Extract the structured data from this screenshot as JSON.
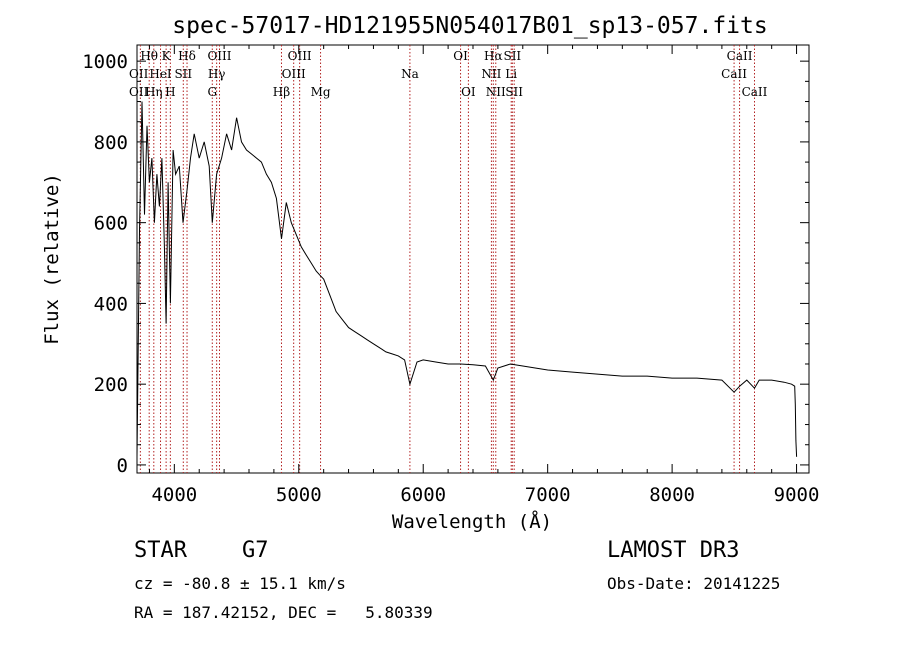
{
  "chart_data": {
    "type": "line",
    "title": "spec-57017-HD121955N054017B01_sp13-057.fits",
    "xlabel": "Wavelength (Å)",
    "ylabel": "Flux (relative)",
    "xlim": [
      3700,
      9100
    ],
    "ylim": [
      -20,
      1040
    ],
    "xticks": [
      4000,
      5000,
      6000,
      7000,
      8000,
      9000
    ],
    "yticks": [
      0,
      200,
      400,
      600,
      800,
      1000
    ],
    "grid": false,
    "line_color": "#000000",
    "marker_color": "#b22222",
    "series": [
      {
        "name": "flux",
        "x": [
          3700,
          3720,
          3740,
          3760,
          3780,
          3800,
          3820,
          3840,
          3860,
          3880,
          3900,
          3920,
          3934,
          3950,
          3968,
          3990,
          4010,
          4040,
          4070,
          4102,
          4130,
          4160,
          4200,
          4240,
          4280,
          4305,
          4340,
          4380,
          4420,
          4460,
          4500,
          4540,
          4580,
          4620,
          4660,
          4700,
          4740,
          4780,
          4820,
          4861,
          4900,
          4940,
          4980,
          5020,
          5060,
          5100,
          5140,
          5170,
          5200,
          5250,
          5300,
          5350,
          5400,
          5450,
          5500,
          5550,
          5600,
          5650,
          5700,
          5750,
          5800,
          5850,
          5893,
          5950,
          6000,
          6100,
          6200,
          6300,
          6400,
          6500,
          6563,
          6600,
          6700,
          6800,
          6900,
          7000,
          7200,
          7400,
          7600,
          7800,
          8000,
          8200,
          8400,
          8498,
          8542,
          8600,
          8662,
          8700,
          8800,
          8900,
          8960,
          8985,
          8990,
          8995,
          9000
        ],
        "y": [
          20,
          580,
          900,
          620,
          840,
          700,
          760,
          600,
          720,
          640,
          760,
          540,
          350,
          700,
          400,
          780,
          720,
          740,
          600,
          680,
          760,
          820,
          760,
          800,
          740,
          600,
          720,
          760,
          820,
          780,
          860,
          800,
          780,
          770,
          760,
          750,
          720,
          700,
          660,
          560,
          650,
          600,
          570,
          540,
          520,
          500,
          480,
          470,
          460,
          420,
          380,
          360,
          340,
          330,
          320,
          310,
          300,
          290,
          280,
          275,
          270,
          260,
          200,
          255,
          260,
          255,
          250,
          250,
          248,
          245,
          210,
          240,
          250,
          245,
          240,
          235,
          230,
          225,
          220,
          220,
          215,
          215,
          210,
          180,
          195,
          210,
          190,
          210,
          210,
          205,
          200,
          195,
          150,
          60,
          20
        ]
      }
    ],
    "lines": [
      {
        "name": "OII",
        "wave": 3727,
        "row": 1,
        "side": "left"
      },
      {
        "name": "OII",
        "wave": 3727,
        "row": 2,
        "side": "left"
      },
      {
        "name": "Hθ",
        "wave": 3798,
        "row": 0,
        "side": "center"
      },
      {
        "name": "Hη",
        "wave": 3835,
        "row": 2,
        "side": "center"
      },
      {
        "name": "HeI",
        "wave": 3889,
        "row": 1,
        "side": "center"
      },
      {
        "name": "K",
        "wave": 3934,
        "row": 0,
        "side": "center"
      },
      {
        "name": "H",
        "wave": 3968,
        "row": 2,
        "side": "center"
      },
      {
        "name": "SII",
        "wave": 4072,
        "row": 1,
        "side": "center"
      },
      {
        "name": "Hδ",
        "wave": 4102,
        "row": 0,
        "side": "center"
      },
      {
        "name": "G",
        "wave": 4305,
        "row": 2,
        "side": "center"
      },
      {
        "name": "Hγ",
        "wave": 4340,
        "row": 1,
        "side": "center"
      },
      {
        "name": "OIII",
        "wave": 4363,
        "row": 0,
        "side": "center"
      },
      {
        "name": "Hβ",
        "wave": 4861,
        "row": 2,
        "side": "center"
      },
      {
        "name": "OIII",
        "wave": 4959,
        "row": 1,
        "side": "center"
      },
      {
        "name": "OIII",
        "wave": 5007,
        "row": 0,
        "side": "center"
      },
      {
        "name": "Mg",
        "wave": 5175,
        "row": 2,
        "side": "center"
      },
      {
        "name": "Na",
        "wave": 5893,
        "row": 1,
        "side": "center"
      },
      {
        "name": "OI",
        "wave": 6300,
        "row": 0,
        "side": "center"
      },
      {
        "name": "OI",
        "wave": 6363,
        "row": 2,
        "side": "center"
      },
      {
        "name": "NII",
        "wave": 6548,
        "row": 1,
        "side": "center"
      },
      {
        "name": "Hα",
        "wave": 6563,
        "row": 0,
        "side": "center"
      },
      {
        "name": "NII",
        "wave": 6583,
        "row": 2,
        "side": "center"
      },
      {
        "name": "Li",
        "wave": 6707,
        "row": 1,
        "side": "center"
      },
      {
        "name": "SII",
        "wave": 6716,
        "row": 0,
        "side": "center"
      },
      {
        "name": "SII",
        "wave": 6731,
        "row": 2,
        "side": "center"
      },
      {
        "name": "CaII",
        "wave": 8498,
        "row": 1,
        "side": "center"
      },
      {
        "name": "CaII",
        "wave": 8542,
        "row": 0,
        "side": "center"
      },
      {
        "name": "CaII",
        "wave": 8662,
        "row": 2,
        "side": "center"
      }
    ]
  },
  "info": {
    "object_class": "STAR",
    "subclass": "G7",
    "survey": "LAMOST DR3",
    "redshift": "cz = -80.8 ± 15.1 km/s",
    "obs_date": "Obs-Date: 20141225",
    "coords": "RA = 187.42152, DEC =   5.80339"
  }
}
